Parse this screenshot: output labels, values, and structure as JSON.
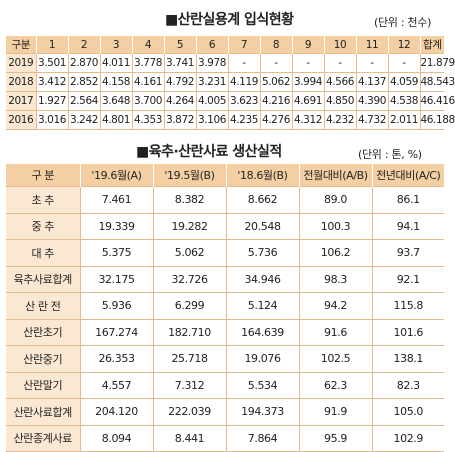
{
  "sections": [
    {
      "title": "■산란실용계 입식현황",
      "unit": "(단위 : 천수)",
      "headers": [
        "구분",
        "1",
        "2",
        "3",
        "4",
        "5",
        "6",
        "7",
        "8",
        "9",
        "10",
        "11",
        "12",
        "합계"
      ],
      "rows": [
        [
          "2019",
          "3.501",
          "2.870",
          "4.011",
          "3.778",
          "3.741",
          "3.978",
          "-",
          "-",
          "-",
          "-",
          "-",
          "-",
          "21.879"
        ],
        [
          "2018",
          "3.412",
          "2.852",
          "4.158",
          "4.161",
          "4.792",
          "3.231",
          "4.119",
          "5.062",
          "3.994",
          "4.566",
          "4.137",
          "4.059",
          "48.543"
        ],
        [
          "2017",
          "1.927",
          "2.564",
          "3.648",
          "3.700",
          "4.264",
          "4.005",
          "3.623",
          "4.216",
          "4.691",
          "4.850",
          "4.390",
          "4.538",
          "46.416"
        ],
        [
          "2016",
          "3.016",
          "3.242",
          "4.801",
          "4.353",
          "3.872",
          "3.106",
          "4.235",
          "4.276",
          "4.312",
          "4.232",
          "4.732",
          "2.011",
          "46.188"
        ]
      ]
    },
    {
      "title": "■육추·산란사료 생산실적",
      "unit": "(단위 : 톤, %)",
      "headers": [
        "구 분",
        "'19.6월(A)",
        "'19.5월(B)",
        "'18.6월(B)",
        "전월대비(A/B)",
        "전년대비(A/C)"
      ],
      "rows": [
        [
          "초 추",
          "7.461",
          "8.382",
          "8.662",
          "89.0",
          "86.1"
        ],
        [
          "중 추",
          "19.339",
          "19.282",
          "20.548",
          "100.3",
          "94.1"
        ],
        [
          "대 추",
          "5.375",
          "5.062",
          "5.736",
          "106.2",
          "93.7"
        ],
        [
          "육추사료합계",
          "32.175",
          "32.726",
          "34.946",
          "98.3",
          "92.1"
        ],
        [
          "산 란 전",
          "5.936",
          "6.299",
          "5.124",
          "94.2",
          "115.8"
        ],
        [
          "산란초기",
          "167.274",
          "182.710",
          "164.639",
          "91.6",
          "101.6"
        ],
        [
          "산란중기",
          "26.353",
          "25.718",
          "19.076",
          "102.5",
          "138.1"
        ],
        [
          "산란말기",
          "4.557",
          "7.312",
          "5.534",
          "62.3",
          "82.3"
        ],
        [
          "산란사료합계",
          "204.120",
          "222.039",
          "194.373",
          "91.9",
          "105.0"
        ],
        [
          "산란종계사료",
          "8.094",
          "8.441",
          "7.864",
          "95.9",
          "102.9"
        ]
      ]
    }
  ]
}
